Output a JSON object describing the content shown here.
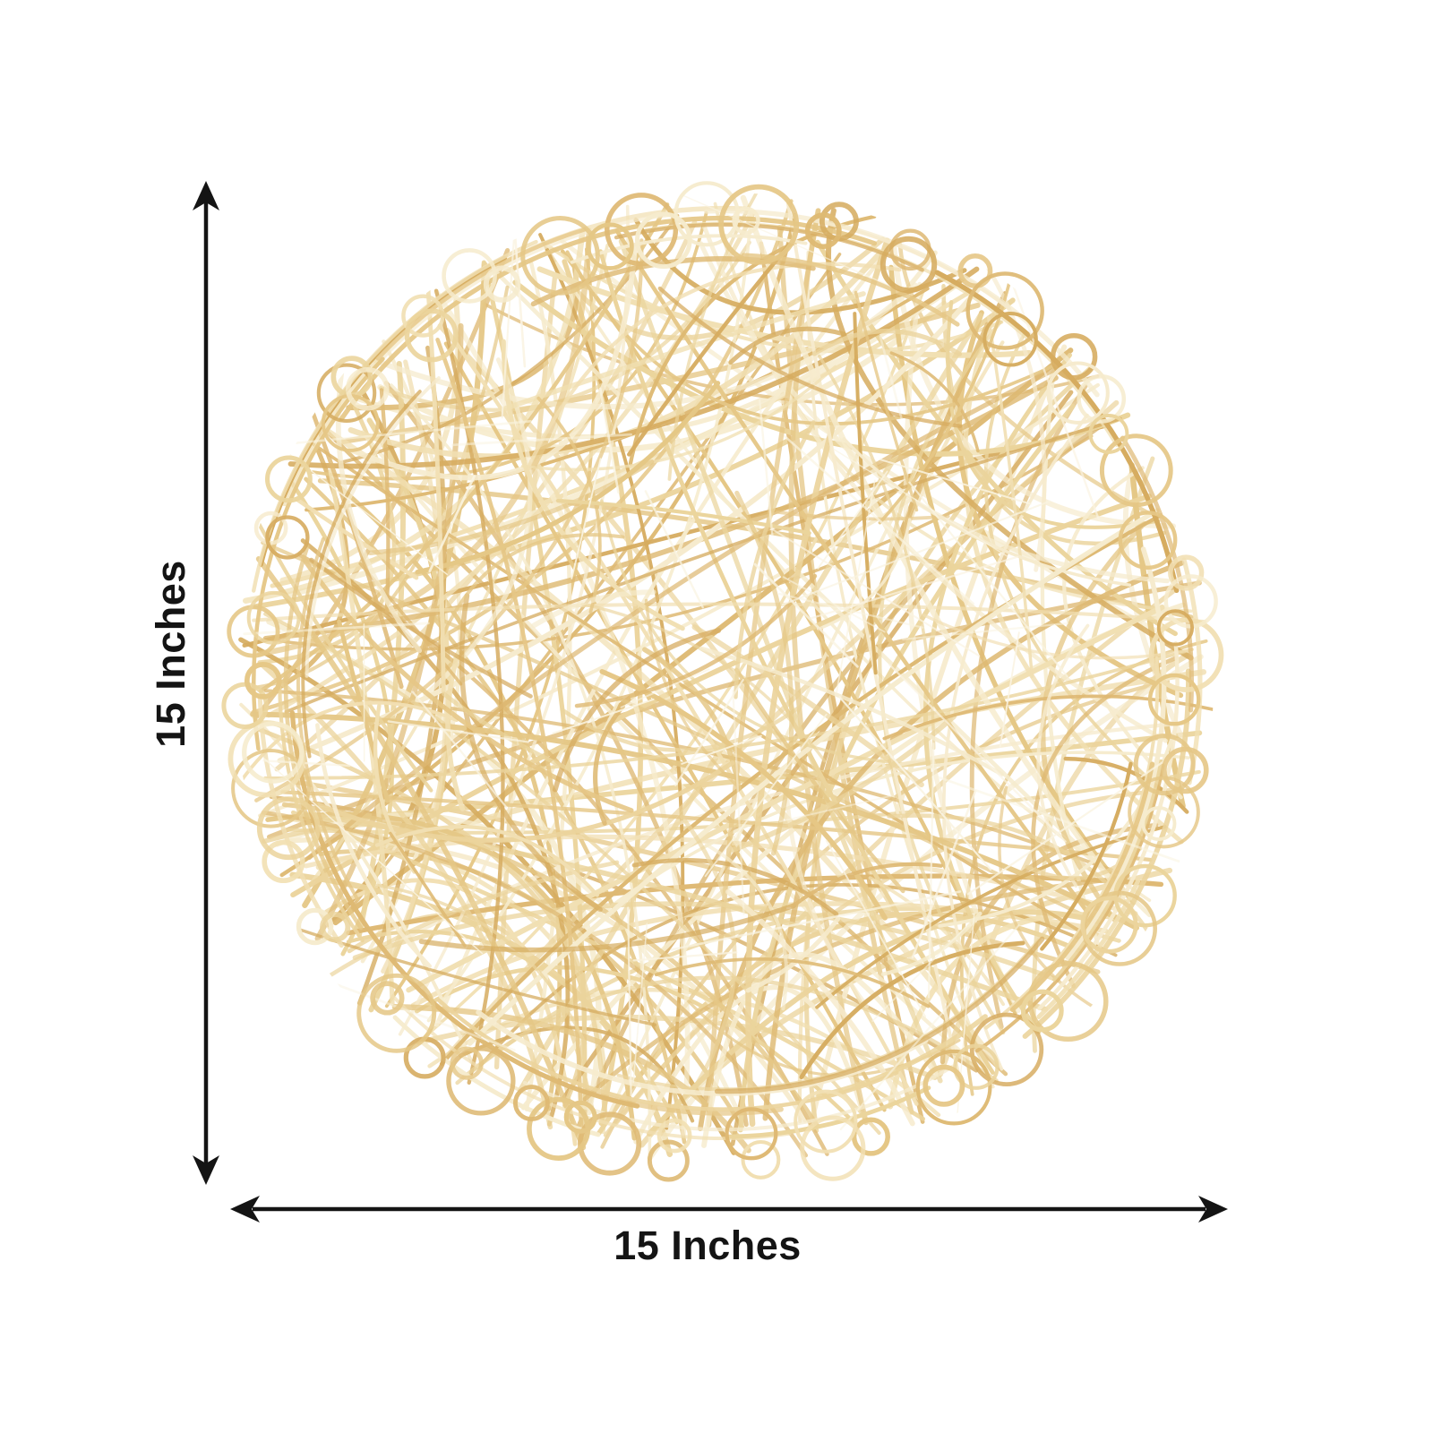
{
  "canvas": {
    "background_color": "#ffffff"
  },
  "placemat": {
    "kind": "round-woven-fiber-placemat",
    "strand_palette": [
      "#f6ebcd",
      "#f1dfb2",
      "#ebd49c",
      "#e5c786",
      "#deb973",
      "#d6ac60"
    ],
    "strand_highlight": "#faf4e2"
  },
  "annotations": {
    "vertical_dimension": {
      "label": "15 Inches"
    },
    "horizontal_dimension": {
      "label": "15 Inches"
    },
    "arrow_color": "#141414",
    "label_color": "#141414"
  }
}
